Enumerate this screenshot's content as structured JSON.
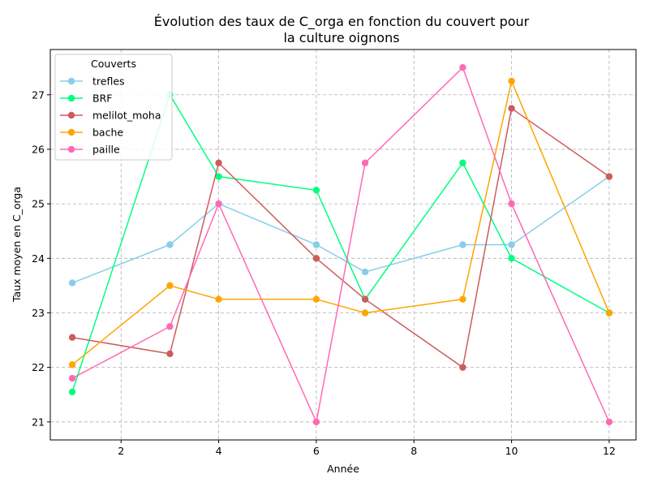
{
  "chart_data": {
    "type": "line",
    "title": [
      "Évolution des taux de C_orga en fonction du couvert pour",
      "la culture oignons"
    ],
    "xlabel": "Année",
    "ylabel": "Taux moyen en C_orga",
    "xlim": [
      0.55,
      12.55
    ],
    "ylim": [
      20.67,
      27.83
    ],
    "xticks": [
      2,
      4,
      6,
      8,
      10,
      12
    ],
    "yticks": [
      21,
      22,
      23,
      24,
      25,
      26,
      27
    ],
    "grid": true,
    "legend": {
      "title": "Couverts",
      "position": "top-left"
    },
    "series": [
      {
        "name": "trefles",
        "color": "#87ceeb",
        "x": [
          1,
          3,
          4,
          6,
          7,
          9,
          10,
          12
        ],
        "y": [
          23.55,
          24.25,
          25.0,
          24.25,
          23.75,
          24.25,
          24.25,
          25.5
        ]
      },
      {
        "name": "BRF",
        "color": "#00ff7f",
        "x": [
          1,
          3,
          4,
          6,
          7,
          9,
          10,
          12
        ],
        "y": [
          21.55,
          27.0,
          25.5,
          25.25,
          23.25,
          25.75,
          24.0,
          23.0
        ]
      },
      {
        "name": "melilot_moha",
        "color": "#cd5c5c",
        "x": [
          1,
          3,
          4,
          6,
          7,
          9,
          10,
          12
        ],
        "y": [
          22.55,
          22.25,
          25.75,
          24.0,
          23.25,
          22.0,
          26.75,
          25.5
        ]
      },
      {
        "name": "bache",
        "color": "#ffa500",
        "x": [
          1,
          3,
          4,
          6,
          7,
          9,
          10,
          12
        ],
        "y": [
          22.05,
          23.5,
          23.25,
          23.25,
          23.0,
          23.25,
          27.25,
          23.0
        ]
      },
      {
        "name": "paille",
        "color": "#ff69b4",
        "x": [
          1,
          3,
          4,
          6,
          7,
          9,
          10,
          12
        ],
        "y": [
          21.8,
          22.75,
          25.0,
          21.0,
          25.75,
          27.5,
          25.0,
          21.0
        ]
      }
    ]
  }
}
